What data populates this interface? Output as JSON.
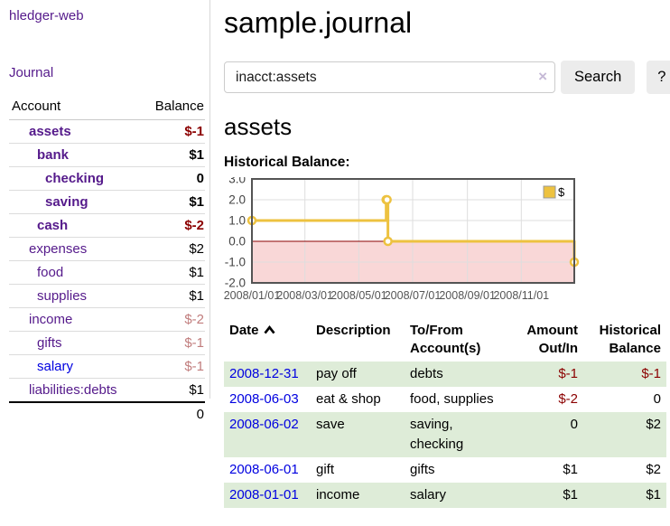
{
  "colors": {
    "link_purple": "#551a8b",
    "link_blue": "#0000e0",
    "negative": "#8b0000",
    "negative_light": "#c17d7d",
    "row_green": "#deecd8",
    "series_gold": "#edc240"
  },
  "sidebar": {
    "brand": "hledger-web",
    "journal_link": "Journal",
    "accounts": {
      "col_account": "Account",
      "col_balance": "Balance",
      "rows": [
        {
          "label": "assets",
          "balance": "$-1"
        },
        {
          "label": "bank",
          "balance": "$1"
        },
        {
          "label": "checking",
          "balance": "0"
        },
        {
          "label": "saving",
          "balance": "$1"
        },
        {
          "label": "cash",
          "balance": "$-2"
        },
        {
          "label": "expenses",
          "balance": "$2"
        },
        {
          "label": "food",
          "balance": "$1"
        },
        {
          "label": "supplies",
          "balance": "$1"
        },
        {
          "label": "income",
          "balance": "$-2"
        },
        {
          "label": "gifts",
          "balance": "$-1"
        },
        {
          "label": "salary",
          "balance": "$-1"
        },
        {
          "label": "liabilities:debts",
          "balance": "$1"
        }
      ],
      "total": "0"
    }
  },
  "header": {
    "title": "sample.journal"
  },
  "search": {
    "value": "inacct:assets",
    "clear_icon": "×",
    "search_button": "Search",
    "help_button": "?"
  },
  "account_page": {
    "heading": "assets",
    "chart_label": "Historical Balance:"
  },
  "chart_data": {
    "type": "line",
    "title": "Historical Balance:",
    "series": [
      {
        "name": "$",
        "steps": true,
        "points": [
          [
            "2008-01-01",
            1
          ],
          [
            "2008-06-01",
            2
          ],
          [
            "2008-06-02",
            2
          ],
          [
            "2008-06-03",
            0
          ],
          [
            "2008-12-31",
            -1
          ]
        ]
      }
    ],
    "x_range": [
      "2008-01-01",
      "2008-12-31"
    ],
    "x_ticks": [
      "2008/01/01",
      "2008/03/01",
      "2008/05/01",
      "2008/07/01",
      "2008/09/01",
      "2008/11/01"
    ],
    "y_ticks": [
      3.0,
      2.0,
      1.0,
      0.0,
      -1.0,
      -2.0
    ],
    "ylim": [
      -2,
      3
    ],
    "grid": true,
    "legend_position": "top-right",
    "line_color": "#edc240",
    "marker_fill": "#ffffff",
    "negative_fill": "#f9d7d7",
    "zero_line_color": "#8b0000",
    "border_color": "#545454",
    "grid_color": "#dedede"
  },
  "register": {
    "headers": {
      "date": "Date",
      "description": "Description",
      "accounts": "To/From Account(s)",
      "amount": "Amount Out/In",
      "balance": "Historical Balance"
    },
    "rows": [
      {
        "date": "2008-12-31",
        "description": "pay off",
        "accounts": "debts",
        "amount": "$-1",
        "balance": "$-1"
      },
      {
        "date": "2008-06-03",
        "description": "eat & shop",
        "accounts": "food, supplies",
        "amount": "$-2",
        "balance": "0"
      },
      {
        "date": "2008-06-02",
        "description": "save",
        "accounts": "saving, checking",
        "amount": "0",
        "balance": "$2"
      },
      {
        "date": "2008-06-01",
        "description": "gift",
        "accounts": "gifts",
        "amount": "$1",
        "balance": "$2"
      },
      {
        "date": "2008-01-01",
        "description": "income",
        "accounts": "salary",
        "amount": "$1",
        "balance": "$1"
      }
    ]
  }
}
